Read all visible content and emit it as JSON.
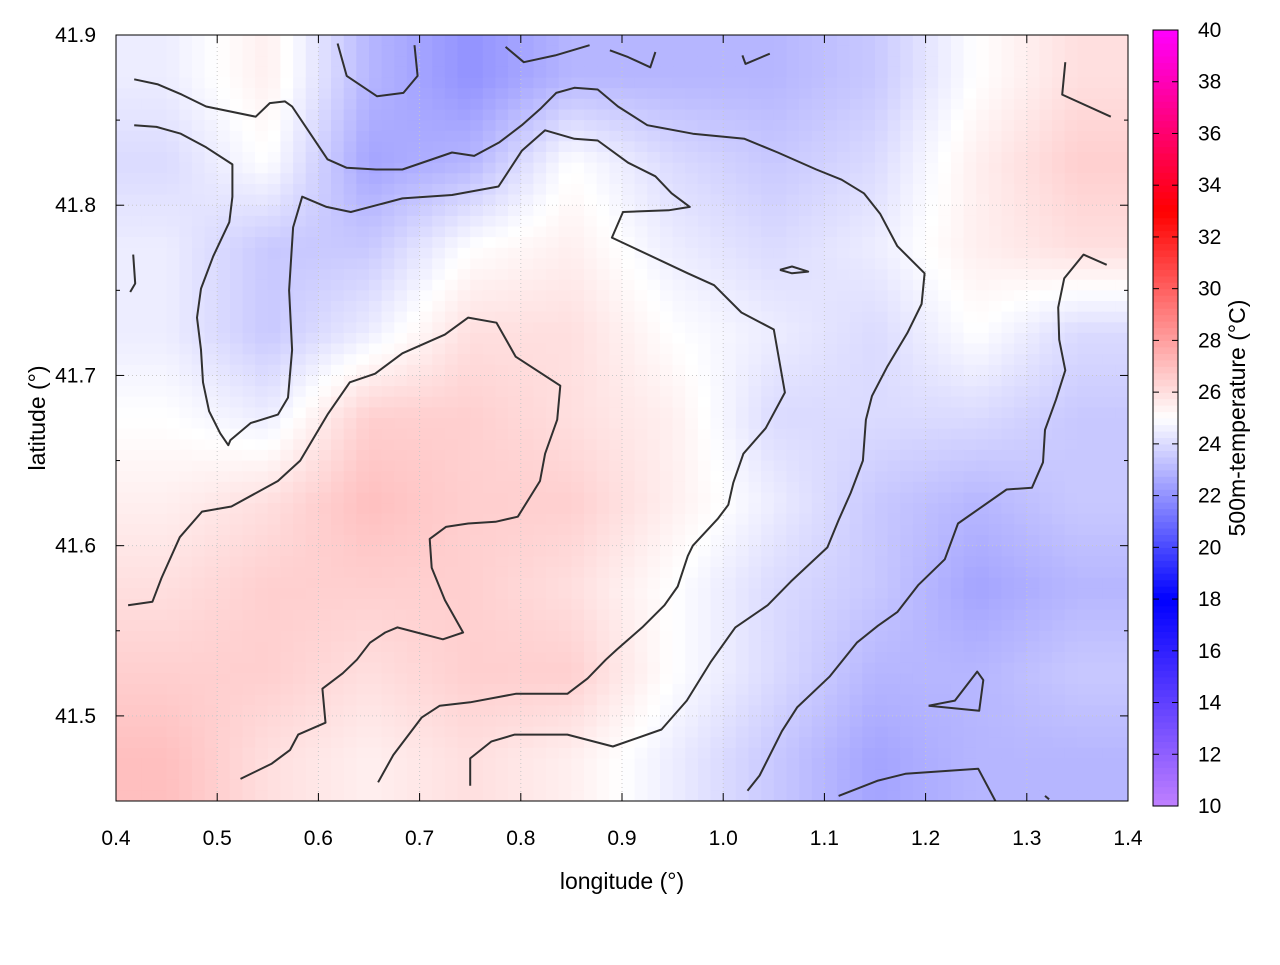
{
  "chart_data": {
    "type": "heatmap",
    "title": "",
    "xlabel": "longitude (°)",
    "ylabel": "latitude (°)",
    "colorbar_label": "500m-temperature (°C)",
    "xlim": [
      0.4,
      1.4
    ],
    "ylim": [
      41.45,
      41.9
    ],
    "xticks": [
      "0.4",
      "0.5",
      "0.6",
      "0.7",
      "0.8",
      "0.9",
      "1.0",
      "1.1",
      "1.2",
      "1.3",
      "1.4"
    ],
    "yticks": [
      "41.5",
      "41.6",
      "41.7",
      "41.8",
      "41.9"
    ],
    "cbrange": [
      10,
      40
    ],
    "cbticks": [
      "10",
      "12",
      "14",
      "16",
      "18",
      "20",
      "22",
      "24",
      "26",
      "28",
      "30",
      "32",
      "34",
      "36",
      "38",
      "40"
    ],
    "palette": [
      [
        10,
        "#c080ff"
      ],
      [
        18,
        "#0000ff"
      ],
      [
        25,
        "#ffffff"
      ],
      [
        33,
        "#ff0000"
      ],
      [
        40,
        "#ff00ff"
      ]
    ],
    "grid": true,
    "grid_lon": [
      0.45,
      0.55,
      0.65,
      0.75,
      0.85,
      0.95,
      1.05,
      1.15,
      1.25,
      1.35
    ],
    "grid_lat": [
      41.875,
      41.825,
      41.775,
      41.725,
      41.675,
      41.625,
      41.575,
      41.525,
      41.475
    ],
    "values": [
      [
        24.5,
        25.5,
        23,
        22,
        23,
        23,
        23,
        23.5,
        25,
        26
      ],
      [
        24,
        25,
        22.5,
        23,
        25,
        24,
        23.5,
        24,
        25.5,
        26.5
      ],
      [
        24.5,
        23.5,
        23.5,
        25,
        25.5,
        24.5,
        24,
        24.5,
        25.5,
        26
      ],
      [
        24.5,
        23.5,
        24.5,
        26,
        26,
        25,
        24.5,
        24,
        25,
        24
      ],
      [
        25,
        24.5,
        26.5,
        26.5,
        26,
        25.5,
        24,
        24,
        24,
        23.5
      ],
      [
        25.5,
        26,
        27,
        26.5,
        26.5,
        25.5,
        24.5,
        23.5,
        23,
        23.5
      ],
      [
        26,
        26.5,
        26.5,
        26.5,
        26,
        25,
        24,
        23.5,
        22.5,
        23
      ],
      [
        26.5,
        26.5,
        26,
        26.5,
        26.5,
        25,
        24,
        23,
        23,
        23.5
      ],
      [
        27,
        26,
        25.5,
        26,
        25.5,
        24.5,
        23.5,
        22.5,
        23,
        23
      ]
    ],
    "contour_color": "#303030",
    "contours": [
      [
        [
          0.418,
          41.874
        ],
        [
          0.4415,
          41.871
        ],
        [
          0.465,
          41.865
        ],
        [
          0.489,
          41.858
        ],
        [
          0.538,
          41.852
        ],
        [
          0.552,
          41.86
        ],
        [
          0.567,
          41.861
        ],
        [
          0.574,
          41.858
        ],
        [
          0.609,
          41.827
        ],
        [
          0.628,
          41.822
        ],
        [
          0.657,
          41.821
        ],
        [
          0.683,
          41.821
        ],
        [
          0.732,
          41.831
        ],
        [
          0.754,
          41.829
        ],
        [
          0.779,
          41.837
        ],
        [
          0.801,
          41.847
        ],
        [
          0.82,
          41.857
        ],
        [
          0.835,
          41.866
        ],
        [
          0.853,
          41.869
        ],
        [
          0.876,
          41.868
        ],
        [
          0.896,
          41.858
        ],
        [
          0.925,
          41.847
        ],
        [
          0.97,
          41.842
        ],
        [
          1.021,
          41.839
        ],
        [
          1.054,
          41.831
        ],
        [
          1.092,
          41.821
        ],
        [
          1.117,
          41.815
        ],
        [
          1.139,
          41.807
        ],
        [
          1.155,
          41.795
        ],
        [
          1.172,
          41.776
        ],
        [
          1.199,
          41.76
        ],
        [
          1.196,
          41.742
        ],
        [
          1.182,
          41.725
        ],
        [
          1.162,
          41.705
        ],
        [
          1.147,
          41.688
        ],
        [
          1.141,
          41.674
        ],
        [
          1.138,
          41.65
        ],
        [
          1.126,
          41.631
        ],
        [
          1.114,
          41.615
        ],
        [
          1.103,
          41.599
        ],
        [
          1.067,
          41.579
        ],
        [
          1.044,
          41.565
        ],
        [
          1.012,
          41.552
        ],
        [
          0.988,
          41.532
        ],
        [
          0.964,
          41.509
        ],
        [
          0.939,
          41.492
        ],
        [
          0.891,
          41.482
        ],
        [
          0.846,
          41.489
        ],
        [
          0.794,
          41.489
        ],
        [
          0.771,
          41.485
        ],
        [
          0.75,
          41.475
        ],
        [
          0.75,
          41.459
        ]
      ],
      [
        [
          0.418,
          41.847
        ],
        [
          0.44,
          41.846
        ],
        [
          0.464,
          41.842
        ],
        [
          0.489,
          41.834
        ],
        [
          0.515,
          41.824
        ],
        [
          0.515,
          41.805
        ],
        [
          0.512,
          41.79
        ],
        [
          0.496,
          41.77
        ],
        [
          0.484,
          41.751
        ],
        [
          0.48,
          41.734
        ],
        [
          0.484,
          41.715
        ],
        [
          0.486,
          41.696
        ],
        [
          0.492,
          41.679
        ],
        [
          0.503,
          41.666
        ],
        [
          0.511,
          41.659
        ],
        [
          0.513,
          41.662
        ],
        [
          0.533,
          41.672
        ],
        [
          0.56,
          41.677
        ],
        [
          0.57,
          41.687
        ],
        [
          0.574,
          41.715
        ],
        [
          0.571,
          41.75
        ],
        [
          0.575,
          41.787
        ],
        [
          0.584,
          41.805
        ],
        [
          0.608,
          41.799
        ],
        [
          0.632,
          41.796
        ],
        [
          0.683,
          41.804
        ],
        [
          0.732,
          41.806
        ],
        [
          0.778,
          41.811
        ],
        [
          0.801,
          41.832
        ],
        [
          0.824,
          41.844
        ],
        [
          0.853,
          41.839
        ],
        [
          0.876,
          41.838
        ],
        [
          0.906,
          41.825
        ],
        [
          0.933,
          41.817
        ],
        [
          0.949,
          41.807
        ],
        [
          0.967,
          41.799
        ],
        [
          0.946,
          41.797
        ],
        [
          0.901,
          41.796
        ],
        [
          0.89,
          41.781
        ],
        [
          0.965,
          41.76
        ],
        [
          0.991,
          41.753
        ],
        [
          1.018,
          41.737
        ],
        [
          1.05,
          41.727
        ],
        [
          1.061,
          41.69
        ],
        [
          1.042,
          41.669
        ],
        [
          1.02,
          41.654
        ],
        [
          1.01,
          41.637
        ],
        [
          1.005,
          41.624
        ],
        [
          0.995,
          41.616
        ],
        [
          0.97,
          41.6
        ],
        [
          0.965,
          41.594
        ],
        [
          0.955,
          41.576
        ],
        [
          0.942,
          41.565
        ],
        [
          0.92,
          41.552
        ],
        [
          0.895,
          41.539
        ],
        [
          0.884,
          41.533
        ],
        [
          0.866,
          41.522
        ],
        [
          0.846,
          41.513
        ],
        [
          0.795,
          41.513
        ],
        [
          0.75,
          41.508
        ],
        [
          0.72,
          41.506
        ],
        [
          0.702,
          41.499
        ],
        [
          0.674,
          41.477
        ],
        [
          0.659,
          41.461
        ]
      ],
      [
        [
          0.412,
          41.565
        ],
        [
          0.436,
          41.567
        ],
        [
          0.445,
          41.581
        ],
        [
          0.463,
          41.605
        ],
        [
          0.485,
          41.62
        ],
        [
          0.514,
          41.623
        ],
        [
          0.56,
          41.638
        ],
        [
          0.582,
          41.65
        ],
        [
          0.609,
          41.677
        ],
        [
          0.631,
          41.696
        ],
        [
          0.656,
          41.701
        ],
        [
          0.683,
          41.713
        ],
        [
          0.725,
          41.724
        ],
        [
          0.748,
          41.734
        ],
        [
          0.776,
          41.731
        ],
        [
          0.795,
          41.711
        ],
        [
          0.839,
          41.694
        ],
        [
          0.836,
          41.674
        ],
        [
          0.824,
          41.654
        ],
        [
          0.819,
          41.638
        ],
        [
          0.797,
          41.617
        ],
        [
          0.775,
          41.614
        ],
        [
          0.748,
          41.613
        ],
        [
          0.726,
          41.611
        ],
        [
          0.71,
          41.604
        ],
        [
          0.712,
          41.587
        ],
        [
          0.725,
          41.568
        ],
        [
          0.743,
          41.549
        ],
        [
          0.723,
          41.545
        ],
        [
          0.678,
          41.552
        ],
        [
          0.666,
          41.549
        ],
        [
          0.651,
          41.543
        ],
        [
          0.638,
          41.533
        ],
        [
          0.624,
          41.525
        ],
        [
          0.604,
          41.516
        ],
        [
          0.607,
          41.496
        ],
        [
          0.58,
          41.489
        ],
        [
          0.572,
          41.48
        ],
        [
          0.554,
          41.472
        ],
        [
          0.523,
          41.463
        ]
      ],
      [
        [
          1.024,
          41.456
        ],
        [
          1.036,
          41.465
        ],
        [
          1.058,
          41.491
        ],
        [
          1.073,
          41.505
        ],
        [
          1.105,
          41.523
        ],
        [
          1.132,
          41.543
        ],
        [
          1.153,
          41.553
        ],
        [
          1.172,
          41.561
        ],
        [
          1.193,
          41.577
        ],
        [
          1.219,
          41.592
        ],
        [
          1.232,
          41.613
        ],
        [
          1.28,
          41.633
        ],
        [
          1.305,
          41.634
        ],
        [
          1.316,
          41.649
        ],
        [
          1.318,
          41.668
        ],
        [
          1.329,
          41.686
        ],
        [
          1.338,
          41.703
        ],
        [
          1.332,
          41.721
        ],
        [
          1.331,
          41.74
        ],
        [
          1.337,
          41.757
        ],
        [
          1.356,
          41.771
        ],
        [
          1.379,
          41.765
        ]
      ],
      [
        [
          0.619,
          41.895
        ],
        [
          0.628,
          41.876
        ],
        [
          0.658,
          41.864
        ],
        [
          0.684,
          41.866
        ],
        [
          0.698,
          41.876
        ],
        [
          0.695,
          41.894
        ]
      ],
      [
        [
          0.785,
          41.893
        ],
        [
          0.803,
          41.884
        ],
        [
          0.834,
          41.888
        ],
        [
          0.868,
          41.894
        ]
      ],
      [
        [
          0.888,
          41.891
        ],
        [
          0.906,
          41.887
        ],
        [
          0.928,
          41.881
        ],
        [
          0.933,
          41.89
        ]
      ],
      [
        [
          1.019,
          41.888
        ],
        [
          1.022,
          41.883
        ],
        [
          1.046,
          41.889
        ]
      ],
      [
        [
          1.338,
          41.884
        ],
        [
          1.335,
          41.865
        ],
        [
          1.383,
          41.852
        ]
      ],
      [
        [
          0.417,
          41.771
        ],
        [
          0.419,
          41.754
        ],
        [
          0.414,
          41.749
        ]
      ],
      [
        [
          1.056,
          41.762
        ],
        [
          1.068,
          41.764
        ],
        [
          1.084,
          41.761
        ],
        [
          1.068,
          41.76
        ],
        [
          1.056,
          41.762
        ]
      ],
      [
        [
          1.114,
          41.453
        ],
        [
          1.153,
          41.462
        ],
        [
          1.18,
          41.466
        ],
        [
          1.252,
          41.469
        ],
        [
          1.269,
          41.45
        ]
      ],
      [
        [
          1.203,
          41.506
        ],
        [
          1.229,
          41.509
        ],
        [
          1.251,
          41.526
        ],
        [
          1.257,
          41.521
        ],
        [
          1.253,
          41.503
        ],
        [
          1.203,
          41.506
        ]
      ],
      [
        [
          1.318,
          41.453
        ],
        [
          1.322,
          41.451
        ]
      ]
    ]
  }
}
